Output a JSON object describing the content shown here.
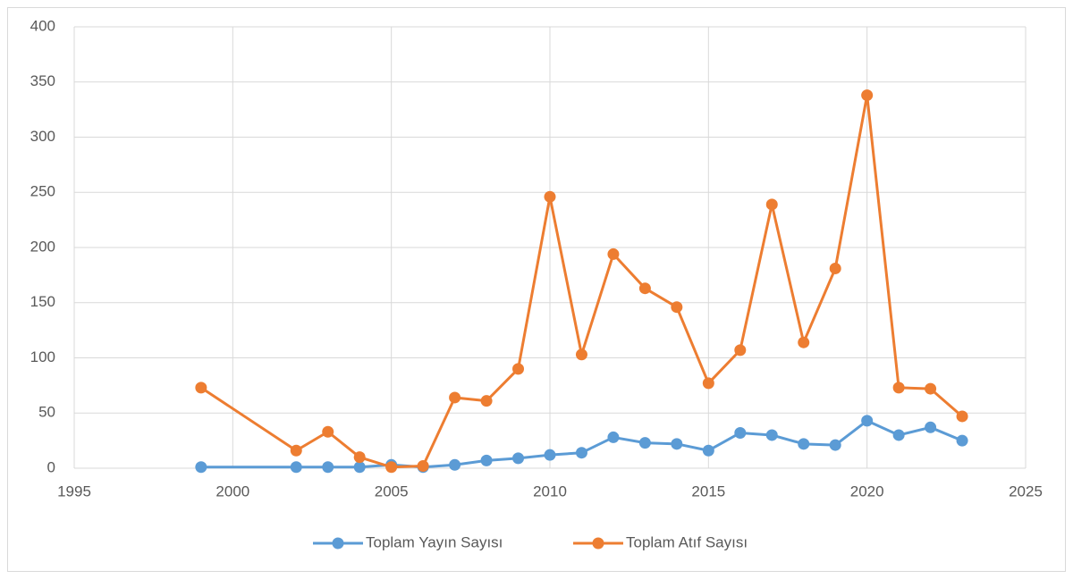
{
  "chart_data": {
    "type": "line",
    "x": [
      1999,
      2002,
      2003,
      2004,
      2005,
      2006,
      2007,
      2008,
      2009,
      2010,
      2011,
      2012,
      2013,
      2014,
      2015,
      2016,
      2017,
      2018,
      2019,
      2020,
      2021,
      2022,
      2023
    ],
    "series": [
      {
        "name": "Toplam Yayın Sayısı",
        "color": "#5b9bd5",
        "values": [
          1,
          1,
          1,
          1,
          3,
          1,
          3,
          7,
          9,
          12,
          14,
          28,
          23,
          22,
          16,
          32,
          30,
          22,
          21,
          43,
          30,
          37,
          25
        ]
      },
      {
        "name": "Toplam Atıf Sayısı",
        "color": "#ed7d31",
        "values": [
          73,
          16,
          33,
          10,
          1,
          2,
          64,
          61,
          90,
          246,
          103,
          194,
          163,
          146,
          77,
          107,
          239,
          114,
          181,
          338,
          73,
          72,
          47
        ]
      }
    ],
    "xlim": [
      1995,
      2025
    ],
    "xticks": [
      1995,
      2000,
      2005,
      2010,
      2015,
      2020,
      2025
    ],
    "ylim": [
      0,
      400
    ],
    "yticks": [
      0,
      50,
      100,
      150,
      200,
      250,
      300,
      350,
      400
    ],
    "grid": true,
    "legend": "bottom"
  }
}
